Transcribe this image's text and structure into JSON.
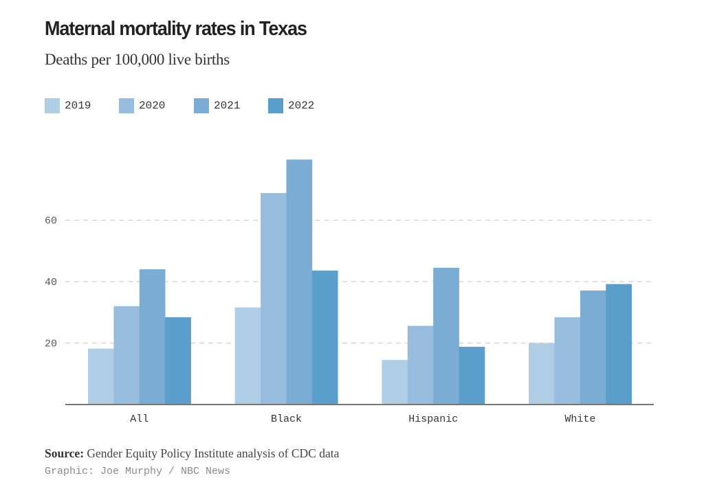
{
  "chart_data": {
    "type": "bar",
    "title": "Maternal mortality rates in Texas",
    "subtitle": "Deaths per 100,000 live births",
    "xlabel": "",
    "ylabel": "",
    "categories": [
      "All",
      "Black",
      "Hispanic",
      "White"
    ],
    "series": [
      {
        "name": "2019",
        "color": "#b0cde6",
        "values": [
          18.2,
          31.6,
          14.5,
          20.0
        ]
      },
      {
        "name": "2020",
        "color": "#97bcdd",
        "values": [
          32.0,
          68.8,
          25.6,
          28.4
        ]
      },
      {
        "name": "2021",
        "color": "#7aacd4",
        "values": [
          44.0,
          79.7,
          44.5,
          37.1
        ]
      },
      {
        "name": "2022",
        "color": "#5a9ecb",
        "values": [
          28.4,
          43.6,
          18.8,
          39.2
        ]
      }
    ],
    "yticks": [
      20,
      40,
      60
    ],
    "ylim": [
      0,
      80
    ],
    "grid": true,
    "gridline_style": "dashed",
    "legend_position": "top-left",
    "source_label": "Source:",
    "source_text": "Gender Equity Policy Institute analysis of CDC data",
    "credit": "Graphic: Joe Murphy / NBC News"
  }
}
